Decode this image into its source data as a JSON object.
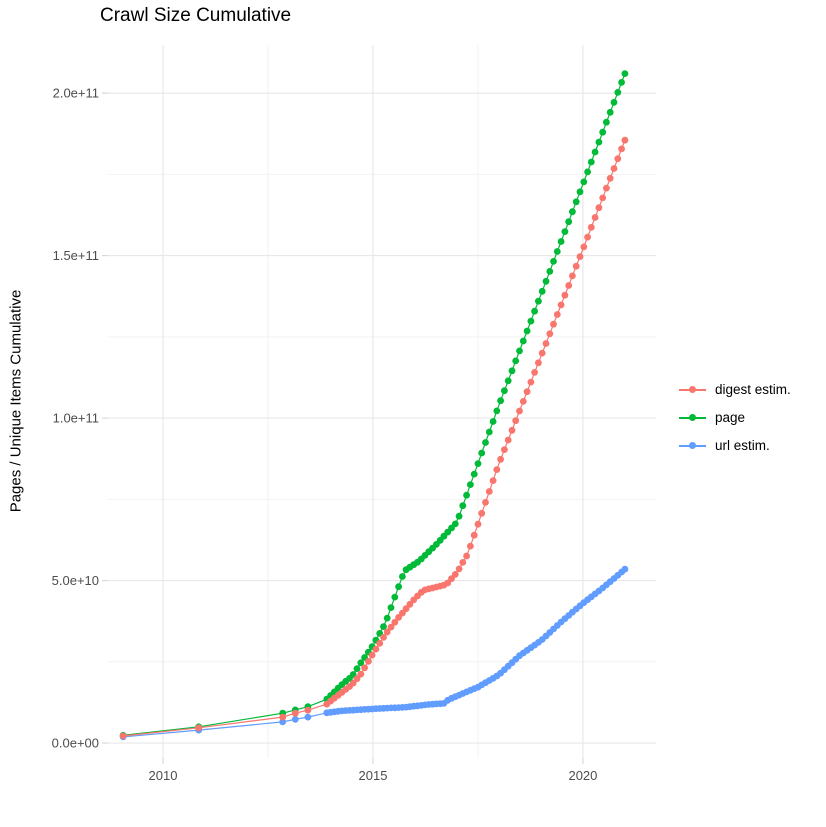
{
  "chart_data": {
    "type": "scatter",
    "title": "Crawl Size Cumulative",
    "xlabel": "",
    "ylabel": "Pages / Unique Items Cumulative",
    "grid": true,
    "legend_position": "right",
    "x_axis": {
      "ticks": [
        2010,
        2015,
        2020
      ],
      "tick_labels": [
        "2010",
        "2015",
        "2020"
      ],
      "minor_gridlines": [
        2012.5,
        2017.5
      ],
      "range": [
        2008.69,
        2021.74
      ]
    },
    "y_axis": {
      "ticks": [
        0,
        50000000000.0,
        100000000000.0,
        150000000000.0,
        200000000000.0
      ],
      "tick_labels": [
        "0.0e+00",
        "5.0e+10",
        "1.0e+11",
        "1.5e+11",
        "2.0e+11"
      ],
      "minor_gridlines": [
        25000000000.0,
        75000000000.0,
        125000000000.0,
        175000000000.0
      ],
      "range": [
        -4600000000.0,
        214800000000.0
      ]
    },
    "point_style": {
      "radius": 3.4,
      "line_width": 1.2
    },
    "dense_points_from_year": 2013.9,
    "dense_point_interval_years": 0.09,
    "series": [
      {
        "label": "digest estim.",
        "color": "#F8766D",
        "points": [
          [
            2009.05,
            2200000000.0
          ],
          [
            2010.85,
            4700000000.0
          ],
          [
            2012.85,
            8000000000.0
          ],
          [
            2013.15,
            9200000000.0
          ],
          [
            2013.45,
            10100000000.0
          ],
          [
            2013.9,
            12000000000.0
          ],
          [
            2014.1,
            14000000000.0
          ],
          [
            2014.3,
            16000000000.0
          ],
          [
            2014.5,
            18000000000.0
          ],
          [
            2014.7,
            21000000000.0
          ],
          [
            2015.0,
            27500000000.0
          ],
          [
            2015.3,
            33500000000.0
          ],
          [
            2015.6,
            38500000000.0
          ],
          [
            2016.0,
            44500000000.0
          ],
          [
            2016.2,
            47000000000.0
          ],
          [
            2016.75,
            48800000000.0
          ],
          [
            2017.0,
            52500000000.0
          ],
          [
            2017.25,
            58000000000.0
          ],
          [
            2018.0,
            86000000000.0
          ],
          [
            2019.0,
            119000000000.0
          ],
          [
            2020.0,
            152000000000.0
          ],
          [
            2021.0,
            185500000000.0
          ]
        ]
      },
      {
        "label": "page",
        "color": "#00BA38",
        "points": [
          [
            2009.05,
            2400000000.0
          ],
          [
            2010.85,
            5000000000.0
          ],
          [
            2012.85,
            9200000000.0
          ],
          [
            2013.15,
            10200000000.0
          ],
          [
            2013.45,
            11200000000.0
          ],
          [
            2013.9,
            13500000000.0
          ],
          [
            2014.1,
            16000000000.0
          ],
          [
            2014.3,
            18500000000.0
          ],
          [
            2014.5,
            20500000000.0
          ],
          [
            2014.7,
            24500000000.0
          ],
          [
            2015.0,
            30000000000.0
          ],
          [
            2015.3,
            37000000000.0
          ],
          [
            2015.55,
            46000000000.0
          ],
          [
            2015.75,
            53000000000.0
          ],
          [
            2016.1,
            56000000000.0
          ],
          [
            2016.5,
            61000000000.0
          ],
          [
            2016.75,
            64500000000.0
          ],
          [
            2017.0,
            68000000000.0
          ],
          [
            2018.0,
            104000000000.0
          ],
          [
            2019.0,
            138000000000.0
          ],
          [
            2020.0,
            172000000000.0
          ],
          [
            2021.0,
            206000000000.0
          ]
        ]
      },
      {
        "label": "url estim.",
        "color": "#619CFF",
        "points": [
          [
            2009.05,
            1900000000.0
          ],
          [
            2010.85,
            4000000000.0
          ],
          [
            2012.85,
            6500000000.0
          ],
          [
            2013.15,
            7300000000.0
          ],
          [
            2013.45,
            8000000000.0
          ],
          [
            2013.9,
            9300000000.0
          ],
          [
            2014.25,
            9900000000.0
          ],
          [
            2014.75,
            10300000000.0
          ],
          [
            2015.25,
            10700000000.0
          ],
          [
            2015.75,
            11000000000.0
          ],
          [
            2016.35,
            11900000000.0
          ],
          [
            2016.7,
            12200000000.0
          ],
          [
            2016.8,
            13400000000.0
          ],
          [
            2017.5,
            17200000000.0
          ],
          [
            2018.0,
            21000000000.0
          ],
          [
            2018.5,
            27000000000.0
          ],
          [
            2019.0,
            31500000000.0
          ],
          [
            2019.5,
            37500000000.0
          ],
          [
            2020.0,
            43000000000.0
          ],
          [
            2020.5,
            48000000000.0
          ],
          [
            2021.0,
            53500000000.0
          ]
        ]
      }
    ],
    "colors": {
      "grid_major": "#e8e8e8",
      "grid_minor": "#f2f2f2",
      "tick_mark": "#d9d9d9",
      "axis_text": "#4d4d4d",
      "background": "#ffffff"
    }
  }
}
